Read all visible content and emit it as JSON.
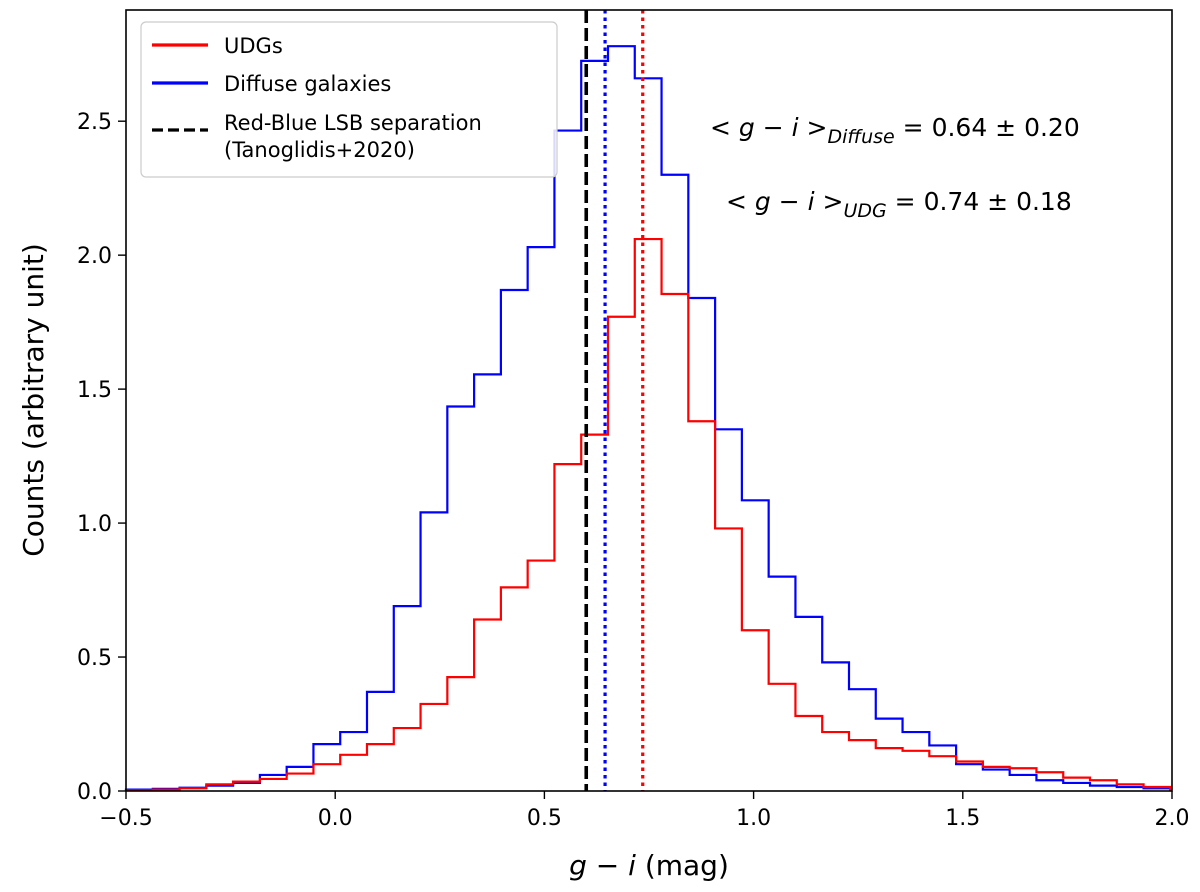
{
  "chart_data": {
    "type": "histogram",
    "xlabel_var": "g − i",
    "xlabel_unit": " (mag)",
    "ylabel": "Counts (arbitrary unit)",
    "xlim": [
      -0.5,
      2.0
    ],
    "ylim": [
      0.0,
      2.915
    ],
    "xticks": [
      -0.5,
      0.0,
      0.5,
      1.0,
      1.5,
      2.0
    ],
    "xtick_labels": [
      "−0.5",
      "0.0",
      "0.5",
      "1.0",
      "1.5",
      "2.0"
    ],
    "yticks": [
      0.0,
      0.5,
      1.0,
      1.5,
      2.0,
      2.5
    ],
    "ytick_labels": [
      "0.0",
      "0.5",
      "1.0",
      "1.5",
      "2.0",
      "2.5"
    ],
    "bin_edges": [
      -0.5,
      -0.436,
      -0.372,
      -0.308,
      -0.244,
      -0.18,
      -0.116,
      -0.052,
      0.012,
      0.076,
      0.14,
      0.204,
      0.268,
      0.332,
      0.396,
      0.46,
      0.524,
      0.588,
      0.652,
      0.716,
      0.78,
      0.844,
      0.908,
      0.972,
      1.036,
      1.1,
      1.164,
      1.228,
      1.292,
      1.356,
      1.42,
      1.484,
      1.548,
      1.612,
      1.676,
      1.74,
      1.804,
      1.868,
      1.932,
      1.996
    ],
    "series": [
      {
        "name": "Diffuse galaxies",
        "color": "#0000ff",
        "values": [
          0.005,
          0.008,
          0.012,
          0.02,
          0.03,
          0.06,
          0.09,
          0.175,
          0.22,
          0.37,
          0.69,
          1.04,
          1.435,
          1.555,
          1.87,
          2.03,
          2.465,
          2.725,
          2.78,
          2.66,
          2.3,
          1.84,
          1.35,
          1.085,
          0.8,
          0.65,
          0.48,
          0.38,
          0.27,
          0.22,
          0.17,
          0.1,
          0.08,
          0.06,
          0.04,
          0.03,
          0.02,
          0.015,
          0.01
        ]
      },
      {
        "name": "UDGs",
        "color": "#ff0000",
        "values": [
          0.002,
          0.005,
          0.01,
          0.025,
          0.035,
          0.045,
          0.065,
          0.1,
          0.135,
          0.175,
          0.235,
          0.325,
          0.425,
          0.64,
          0.76,
          0.86,
          1.22,
          1.33,
          1.77,
          2.06,
          1.855,
          1.38,
          0.98,
          0.6,
          0.4,
          0.28,
          0.22,
          0.19,
          0.16,
          0.15,
          0.13,
          0.11,
          0.09,
          0.085,
          0.07,
          0.05,
          0.04,
          0.025,
          0.015
        ]
      }
    ],
    "vlines": [
      {
        "name": "separation",
        "x": 0.6,
        "color": "#000000",
        "style": "dashed"
      },
      {
        "name": "diffuse-mean",
        "x": 0.645,
        "color": "#0000ff",
        "style": "dotted"
      },
      {
        "name": "udg-mean",
        "x": 0.735,
        "color": "#ff0000",
        "style": "dotted"
      }
    ],
    "legend": {
      "position": "top-left",
      "entries": [
        {
          "label": "UDGs",
          "color": "#ff0000",
          "style": "solid"
        },
        {
          "label": "Diffuse galaxies",
          "color": "#0000ff",
          "style": "solid"
        },
        {
          "label": "Red-Blue LSB separation",
          "label2": "(Tanoglidis+2020)",
          "color": "#000000",
          "style": "dashed"
        }
      ]
    },
    "annotations": [
      {
        "lt": "<",
        "var": "g − i",
        "gt": ">",
        "sub": "Diffuse",
        "rest": " = 0.64 ± 0.20"
      },
      {
        "lt": "<",
        "var": "g − i",
        "gt": ">",
        "sub": "UDG",
        "rest": " = 0.74 ± 0.18"
      }
    ]
  }
}
